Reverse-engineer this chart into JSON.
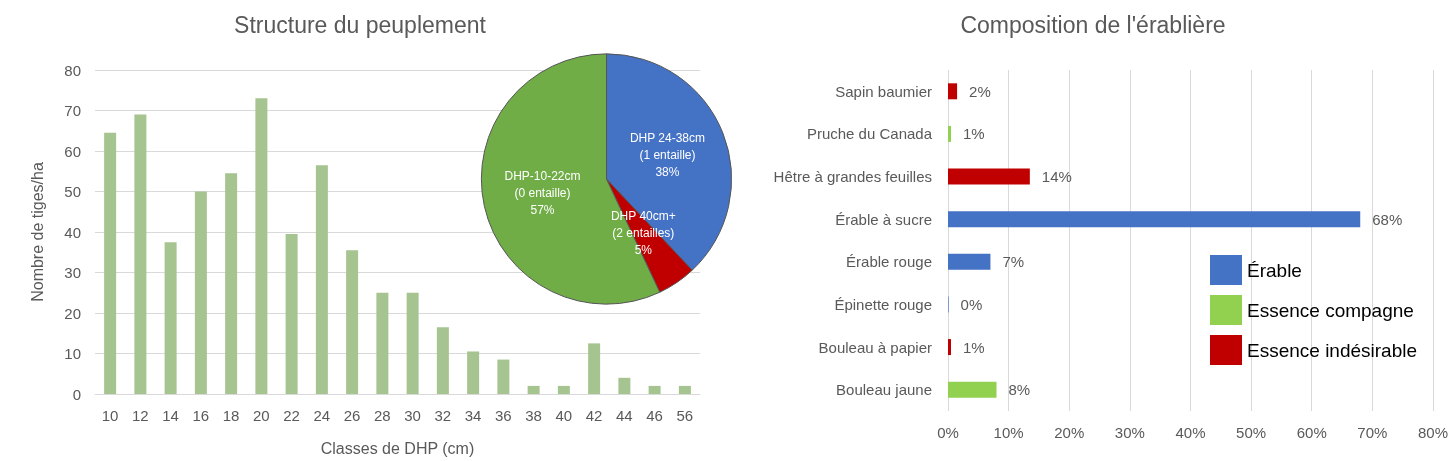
{
  "chart_data": [
    {
      "type": "bar",
      "title": "Structure du peuplement",
      "xlabel": "Classes de DHP (cm)",
      "ylabel": "Nombre de tiges/ha",
      "categories": [
        "10",
        "12",
        "14",
        "16",
        "18",
        "20",
        "22",
        "24",
        "26",
        "28",
        "30",
        "32",
        "34",
        "36",
        "38",
        "40",
        "42",
        "44",
        "46",
        "56"
      ],
      "values": [
        64.5,
        69,
        37.5,
        50,
        54.5,
        73,
        39.5,
        56.5,
        35.5,
        25,
        25,
        16.5,
        10.5,
        8.5,
        2,
        2,
        12.5,
        4,
        2,
        2
      ],
      "color": "#a5c490",
      "ylim": [
        0,
        80
      ],
      "yticks": [
        0,
        10,
        20,
        30,
        40,
        50,
        60,
        70,
        80
      ],
      "grid": "y"
    },
    {
      "type": "pie",
      "categories": [
        "DHP 24-38cm (1 entaille)",
        "DHP 40cm+ (2 entailles)",
        "DHP-10-22cm (0 entaille)"
      ],
      "values": [
        38,
        5,
        57
      ],
      "value_labels": [
        "38%",
        "5%",
        "57%"
      ],
      "colors": [
        "#4472c4",
        "#c00000",
        "#70ad47"
      ]
    },
    {
      "type": "bar",
      "orientation": "horizontal",
      "stacked": true,
      "title": "Composition de l'érablière",
      "categories": [
        "Sapin baumier",
        "Pruche du Canada",
        "Hêtre à grandes feuilles",
        "Érable à sucre",
        "Érable rouge",
        "Épinette rouge",
        "Bouleau à papier",
        "Bouleau jaune"
      ],
      "series": [
        {
          "name": "Érable",
          "color": "#4472c4",
          "values": [
            null,
            null,
            null,
            68,
            7,
            0.1,
            null,
            null
          ],
          "value_labels": [
            null,
            null,
            null,
            "68%",
            "7%",
            "0%",
            null,
            null
          ]
        },
        {
          "name": "Essence compagne",
          "color": "#92d050",
          "values": [
            null,
            0.5,
            null,
            null,
            null,
            null,
            null,
            8
          ],
          "value_labels": [
            null,
            "1%",
            null,
            null,
            null,
            null,
            null,
            "8%"
          ]
        },
        {
          "name": "Essence indésirable",
          "color": "#c00000",
          "values": [
            1.5,
            null,
            13.5,
            null,
            null,
            null,
            0.5,
            null
          ],
          "value_labels": [
            "2%",
            null,
            "14%",
            null,
            null,
            null,
            "1%",
            null
          ]
        }
      ],
      "xlim": [
        0,
        80
      ],
      "xticks": [
        {
          "value": 0,
          "label": "0%"
        },
        {
          "value": 10,
          "label": "10%"
        },
        {
          "value": 20,
          "label": "20%"
        },
        {
          "value": 30,
          "label": "30%"
        },
        {
          "value": 40,
          "label": "40%"
        },
        {
          "value": 50,
          "label": "50%"
        },
        {
          "value": 60,
          "label": "60%"
        },
        {
          "value": 70,
          "label": "70%"
        },
        {
          "value": 80,
          "label": "80%"
        }
      ],
      "grid": "x",
      "legend": "right"
    }
  ]
}
